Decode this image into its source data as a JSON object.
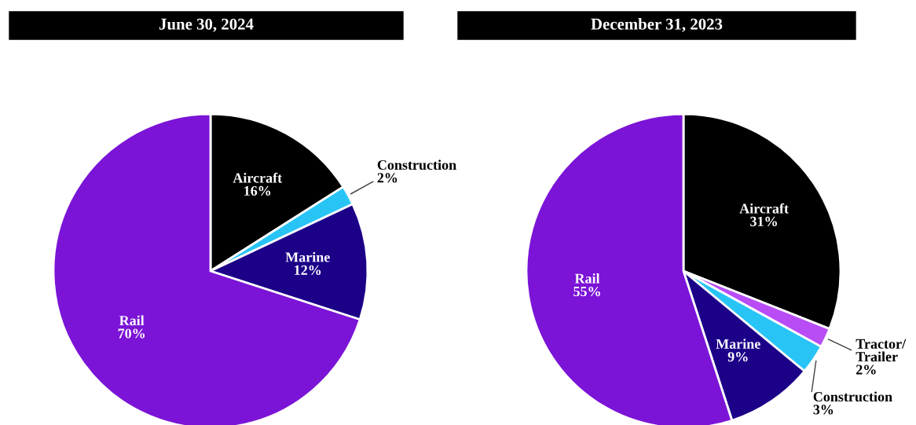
{
  "chart_data": [
    {
      "type": "pie",
      "title": "June 30, 2024",
      "categories": [
        "Aircraft",
        "Construction",
        "Marine",
        "Rail"
      ],
      "values": [
        16,
        2,
        12,
        70
      ],
      "colors": [
        "#000000",
        "#29c4f6",
        "#1c0088",
        "#7b14d6"
      ],
      "value_labels": [
        "16%",
        "2%",
        "12%",
        "70%"
      ]
    },
    {
      "type": "pie",
      "title": "December 31, 2023",
      "categories": [
        "Aircraft",
        "Tractor/\nTrailer",
        "Construction",
        "Marine",
        "Rail"
      ],
      "values": [
        31,
        2,
        3,
        9,
        55
      ],
      "colors": [
        "#000000",
        "#b84cf5",
        "#29c4f6",
        "#1c0088",
        "#7b14d6"
      ],
      "value_labels": [
        "31%",
        "2%",
        "3%",
        "9%",
        "55%"
      ]
    }
  ]
}
